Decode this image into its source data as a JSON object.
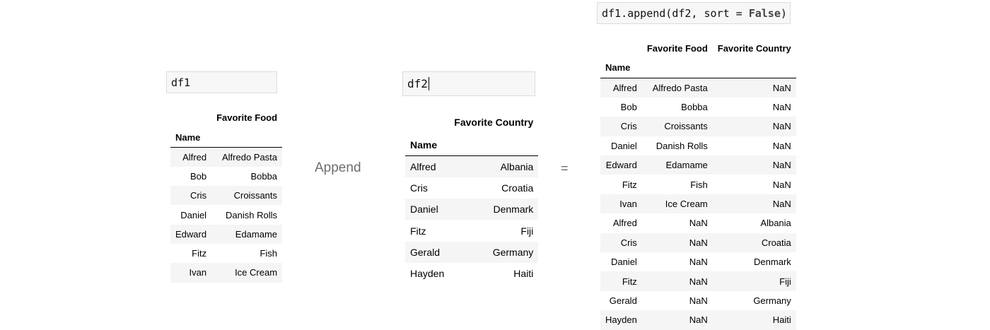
{
  "cells": {
    "df1": "df1",
    "df2": "df2",
    "code_prefix": "df1.append(df2, sort = ",
    "code_keyword": "False",
    "code_suffix": ")"
  },
  "operators": {
    "append": "Append",
    "equals": "="
  },
  "df1": {
    "columns": [
      "Favorite Food"
    ],
    "index_name": "Name",
    "rows": [
      {
        "name": "Alfred",
        "values": [
          "Alfredo Pasta"
        ]
      },
      {
        "name": "Bob",
        "values": [
          "Bobba"
        ]
      },
      {
        "name": "Cris",
        "values": [
          "Croissants"
        ]
      },
      {
        "name": "Daniel",
        "values": [
          "Danish Rolls"
        ]
      },
      {
        "name": "Edward",
        "values": [
          "Edamame"
        ]
      },
      {
        "name": "Fitz",
        "values": [
          "Fish"
        ]
      },
      {
        "name": "Ivan",
        "values": [
          "Ice Cream"
        ]
      }
    ]
  },
  "df2": {
    "columns": [
      "Favorite Country"
    ],
    "index_name": "Name",
    "rows": [
      {
        "name": "Alfred",
        "values": [
          "Albania"
        ]
      },
      {
        "name": "Cris",
        "values": [
          "Croatia"
        ]
      },
      {
        "name": "Daniel",
        "values": [
          "Denmark"
        ]
      },
      {
        "name": "Fitz",
        "values": [
          "Fiji"
        ]
      },
      {
        "name": "Gerald",
        "values": [
          "Germany"
        ]
      },
      {
        "name": "Hayden",
        "values": [
          "Haiti"
        ]
      }
    ]
  },
  "result": {
    "columns": [
      "Favorite Food",
      "Favorite Country"
    ],
    "index_name": "Name",
    "rows": [
      {
        "name": "Alfred",
        "values": [
          "Alfredo Pasta",
          "NaN"
        ]
      },
      {
        "name": "Bob",
        "values": [
          "Bobba",
          "NaN"
        ]
      },
      {
        "name": "Cris",
        "values": [
          "Croissants",
          "NaN"
        ]
      },
      {
        "name": "Daniel",
        "values": [
          "Danish Rolls",
          "NaN"
        ]
      },
      {
        "name": "Edward",
        "values": [
          "Edamame",
          "NaN"
        ]
      },
      {
        "name": "Fitz",
        "values": [
          "Fish",
          "NaN"
        ]
      },
      {
        "name": "Ivan",
        "values": [
          "Ice Cream",
          "NaN"
        ]
      },
      {
        "name": "Alfred",
        "values": [
          "NaN",
          "Albania"
        ]
      },
      {
        "name": "Cris",
        "values": [
          "NaN",
          "Croatia"
        ]
      },
      {
        "name": "Daniel",
        "values": [
          "NaN",
          "Denmark"
        ]
      },
      {
        "name": "Fitz",
        "values": [
          "NaN",
          "Fiji"
        ]
      },
      {
        "name": "Gerald",
        "values": [
          "NaN",
          "Germany"
        ]
      },
      {
        "name": "Hayden",
        "values": [
          "NaN",
          "Haiti"
        ]
      }
    ]
  }
}
